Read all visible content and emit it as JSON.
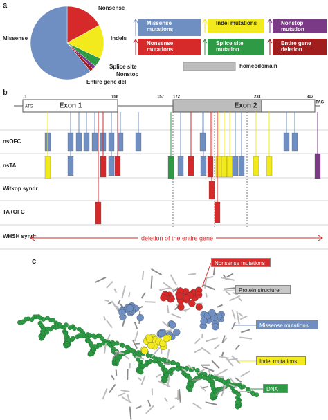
{
  "panel_labels": [
    "a",
    "b",
    "c"
  ],
  "chart_data": {
    "type": "pie",
    "categories": [
      "Nonsense",
      "Indels",
      "Splice site",
      "Nonstop",
      "Entire gene del",
      "Missense"
    ],
    "values": [
      17,
      15,
      4,
      1.5,
      1.5,
      61
    ],
    "colors": [
      "#d62a2a",
      "#f2ea1c",
      "#2e9a45",
      "#7b3a86",
      "#a11e1e",
      "#6f8fc2"
    ]
  },
  "legend": {
    "items": [
      {
        "label": "Missense mutations",
        "color": "#6f8fc2"
      },
      {
        "label": "Indel mutations",
        "color": "#f2ea1c"
      },
      {
        "label": "Nonstop mutation",
        "color": "#7b3a86"
      },
      {
        "label": "Nonsense mutations",
        "color": "#d62a2a"
      },
      {
        "label": "Splice site mutation",
        "color": "#2e9a45"
      },
      {
        "label": "Entire gene deletion",
        "color": "#a11e1e"
      }
    ],
    "homeodomain": "homeodomain"
  },
  "gene_map": {
    "exons": [
      "Exon 1",
      "Exon 2"
    ],
    "start_codon": "ATG",
    "stop_codon": "TAG",
    "positions": [
      "1",
      "156",
      "157",
      "172",
      "231",
      "303"
    ],
    "rows": [
      "nsOFC",
      "nsTA",
      "Witkop syndr",
      "TA+OFC",
      "WHSH syndr"
    ],
    "deletion": "deletion of the entire gene"
  },
  "structure": {
    "labels": [
      {
        "text": "Nonsense mutations",
        "color": "#d62a2a"
      },
      {
        "text": "Protein structure",
        "color": "#c8c8c8"
      },
      {
        "text": "Missense mutations",
        "color": "#6f8fc2"
      },
      {
        "text": "Indel mutations",
        "color": "#f2ea1c"
      },
      {
        "text": "DNA",
        "color": "#2e9a45"
      }
    ]
  }
}
